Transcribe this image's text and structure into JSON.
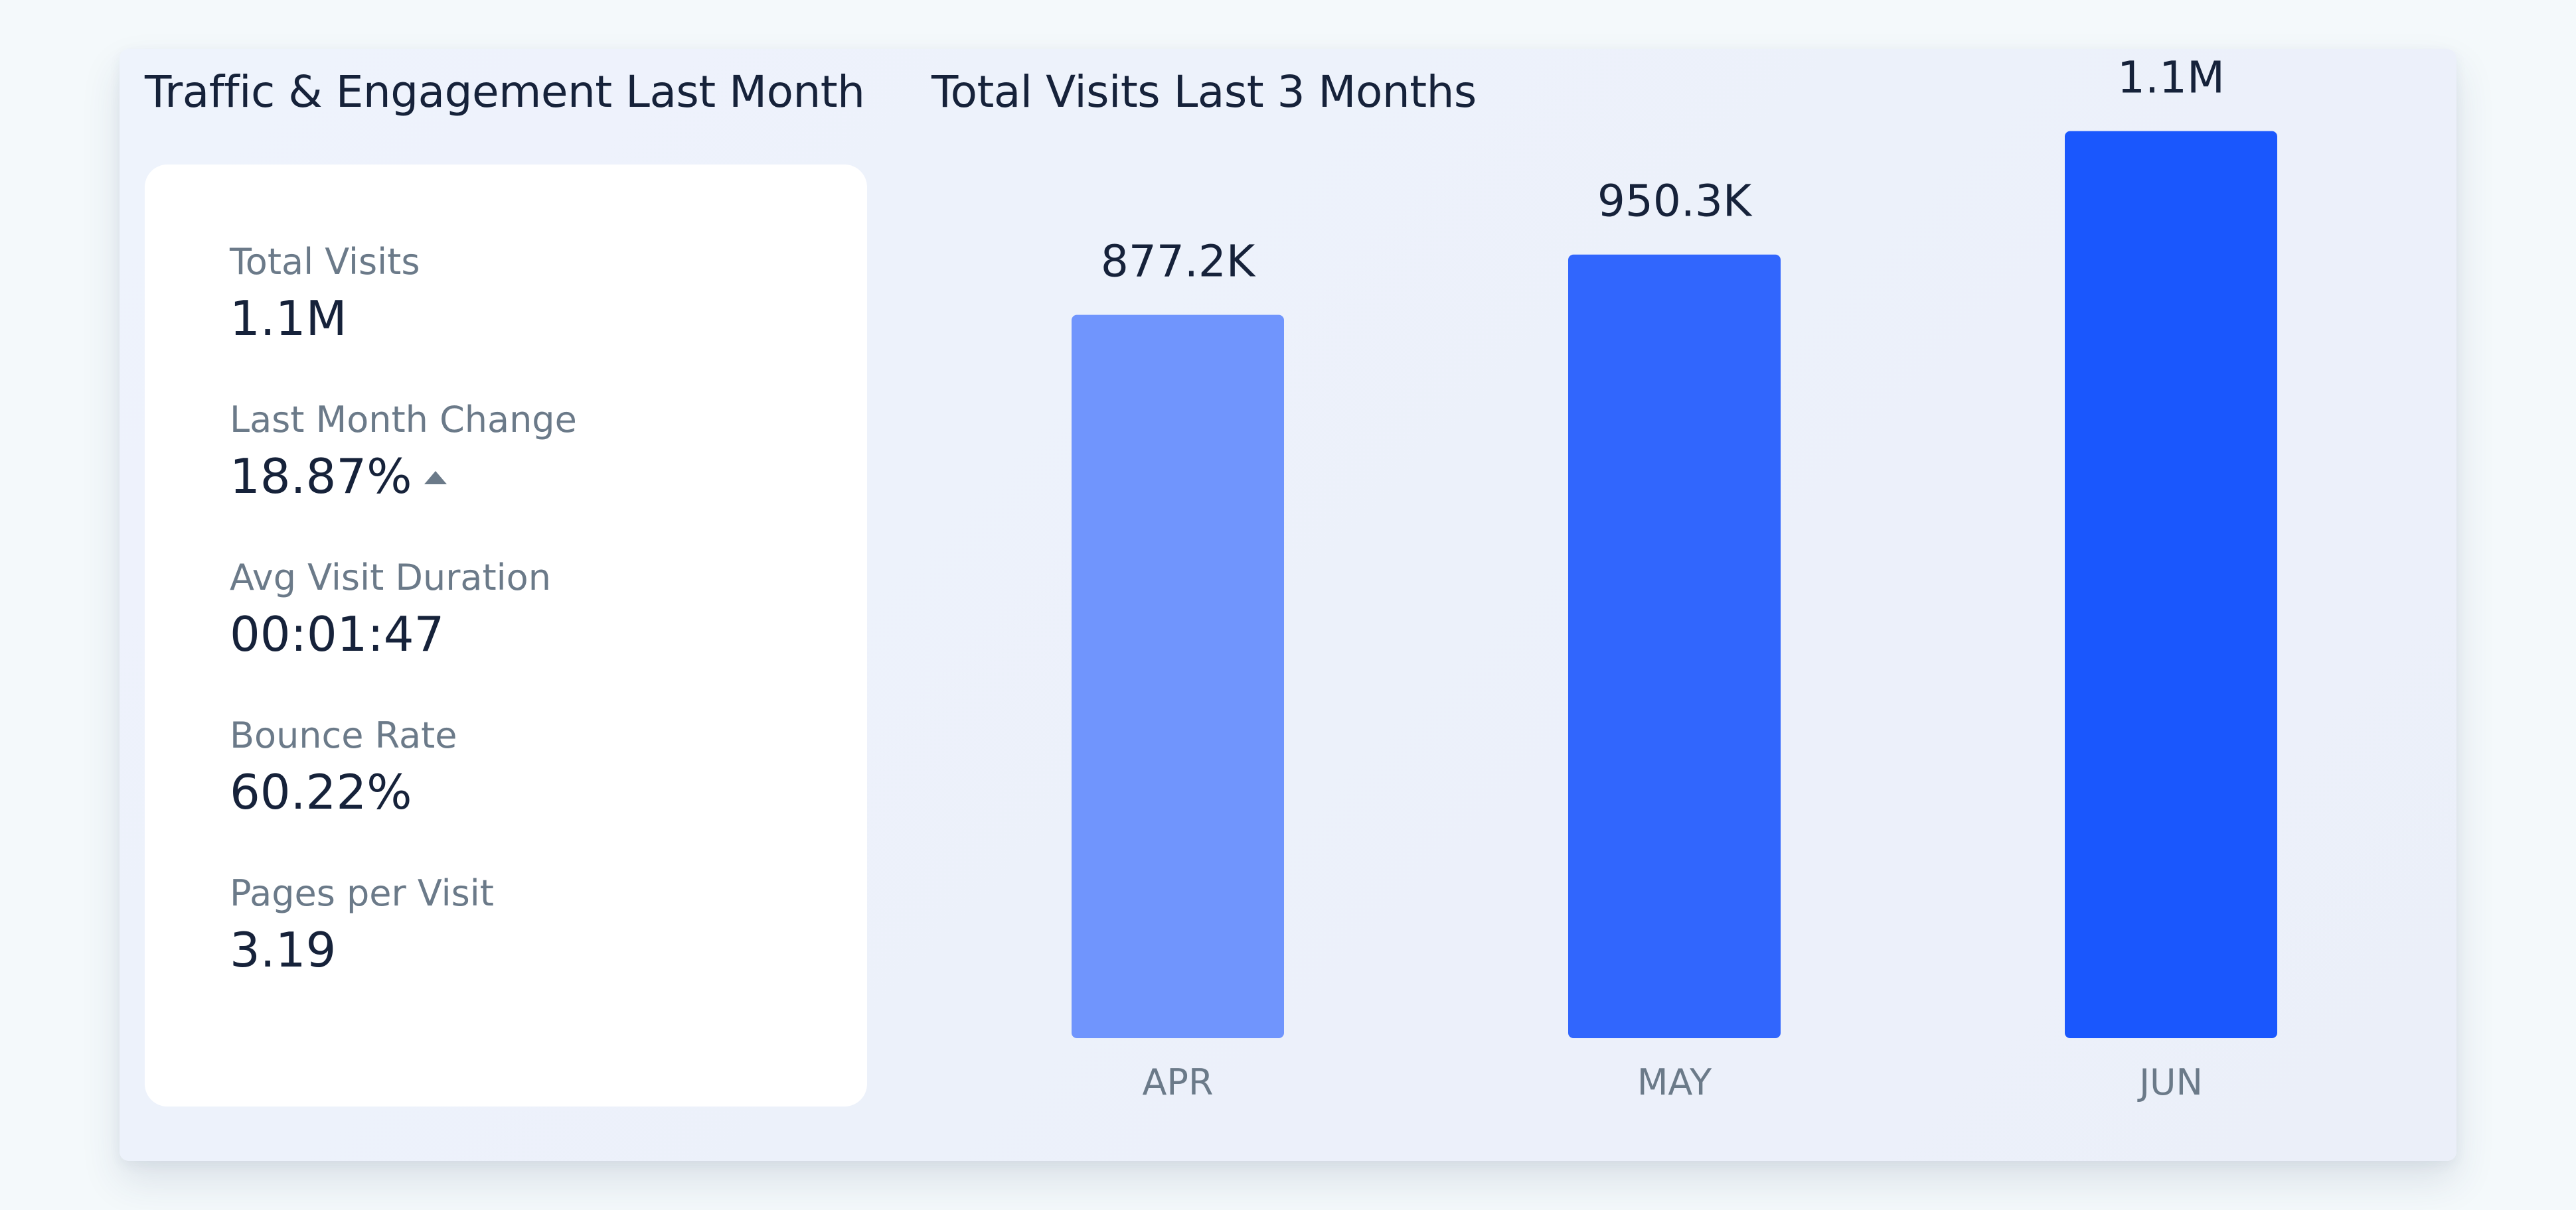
{
  "engagement": {
    "title": "Traffic & Engagement Last Month",
    "stats": [
      {
        "label": "Total Visits",
        "value": "1.1M"
      },
      {
        "label": "Last Month Change",
        "value": "18.87%"
      },
      {
        "label": "Avg Visit Duration",
        "value": "00:01:47"
      },
      {
        "label": "Bounce Rate",
        "value": "60.22%"
      },
      {
        "label": "Pages per Visit",
        "value": "3.19"
      }
    ],
    "change_direction_icon": "triangle-up-icon"
  },
  "chart_data": {
    "type": "bar",
    "title": "Total Visits Last 3 Months",
    "categories": [
      "APR",
      "MAY",
      "JUN"
    ],
    "values": [
      877200,
      950300,
      1100000
    ],
    "value_labels": [
      "877.2K",
      "950.3K",
      "1.1M"
    ],
    "bar_colors": [
      "#7095fd",
      "#3166fd",
      "#1a57fd"
    ],
    "xlabel": "",
    "ylabel": "",
    "ylim": [
      0,
      1185000
    ],
    "grid": false,
    "legend": "none"
  },
  "colors": {
    "text_primary": "#16223a",
    "text_secondary": "#6b7a89"
  }
}
